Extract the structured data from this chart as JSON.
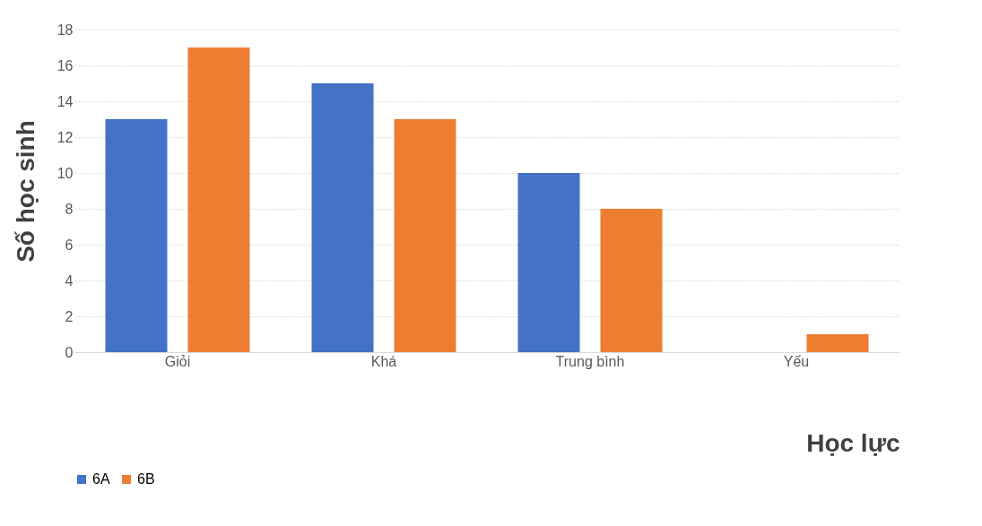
{
  "chart_data": {
    "type": "bar",
    "xlabel": "Học lực",
    "ylabel": "Số học sinh",
    "categories": [
      "Giỏi",
      "Khá",
      "Trung bình",
      "Yếu"
    ],
    "series": [
      {
        "name": "6A",
        "color": "#4472c4",
        "values": [
          13,
          15,
          10,
          0
        ]
      },
      {
        "name": "6B",
        "color": "#ed7d31",
        "values": [
          17,
          13,
          8,
          1
        ]
      }
    ],
    "ylim": [
      0,
      18
    ],
    "yticks": [
      0,
      2,
      4,
      6,
      8,
      10,
      12,
      14,
      16,
      18
    ],
    "grid": "y",
    "legend": "bottom"
  }
}
